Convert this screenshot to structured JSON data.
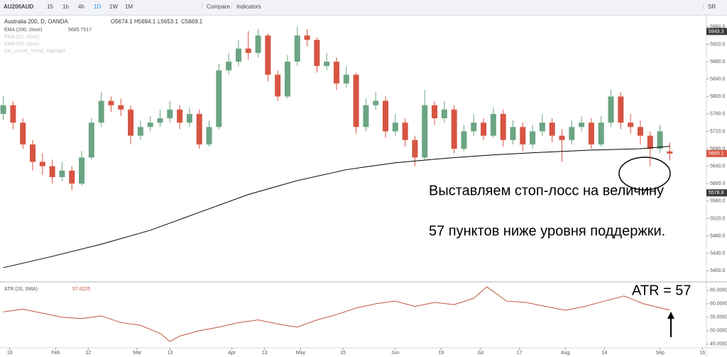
{
  "toolbar": {
    "symbol": "AU200AUD",
    "intervals": [
      "15",
      "1h",
      "4h",
      "1D",
      "1W",
      "1M"
    ],
    "active_interval": 3,
    "buttons": [
      "Compare",
      "Indicators"
    ],
    "right": "SR"
  },
  "chart_data": [
    {
      "type": "candlestick",
      "title": "Australia 200, D, OANDA",
      "ohlc_labels": [
        "O5674.1",
        "H5694.1",
        "L5653.1",
        "C5669.1"
      ],
      "hidden_indicators": [
        "EMA (20, close)",
        "EMA (50, close)",
        "CK_Linear_Trend_Highlight"
      ],
      "up_color": "#6ba583",
      "down_color": "#d75442",
      "x": [
        0,
        3,
        6,
        9,
        12,
        15,
        18,
        21,
        24,
        27,
        30,
        33,
        36,
        39,
        42,
        45,
        48,
        51,
        54,
        57,
        60,
        63,
        66,
        69,
        72,
        75,
        78,
        81,
        84,
        87,
        90,
        93,
        96,
        99,
        102,
        105,
        108,
        111,
        114,
        117,
        120,
        123,
        126,
        129,
        132,
        135,
        138,
        141,
        144,
        147,
        150,
        153,
        156,
        159,
        162,
        165,
        168,
        171,
        174,
        177,
        180,
        183,
        186,
        189,
        192,
        195,
        198,
        201,
        204
      ],
      "open": [
        5760,
        5780,
        5740,
        5690,
        5650,
        5640,
        5615,
        5630,
        5600,
        5660,
        5740,
        5790,
        5780,
        5770,
        5710,
        5730,
        5740,
        5750,
        5770,
        5740,
        5760,
        5690,
        5730,
        5860,
        5880,
        5910,
        5900,
        5940,
        5850,
        5800,
        5880,
        5940,
        5930,
        5870,
        5880,
        5830,
        5850,
        5730,
        5780,
        5790,
        5720,
        5740,
        5700,
        5660,
        5780,
        5750,
        5770,
        5680,
        5720,
        5740,
        5710,
        5760,
        5700,
        5730,
        5690,
        5720,
        5740,
        5710,
        5700,
        5730,
        5740,
        5690,
        5740,
        5800,
        5740,
        5730,
        5710,
        5680,
        5674.1
      ],
      "high": [
        5800,
        5790,
        5750,
        5700,
        5670,
        5655,
        5650,
        5640,
        5675,
        5750,
        5810,
        5800,
        5795,
        5780,
        5745,
        5755,
        5770,
        5790,
        5780,
        5775,
        5770,
        5745,
        5875,
        5900,
        5930,
        5950,
        5955,
        5945,
        5860,
        5895,
        5960,
        5955,
        5935,
        5900,
        5890,
        5870,
        5855,
        5795,
        5810,
        5800,
        5760,
        5750,
        5710,
        5815,
        5790,
        5790,
        5780,
        5735,
        5760,
        5750,
        5775,
        5770,
        5745,
        5740,
        5735,
        5760,
        5750,
        5725,
        5745,
        5755,
        5750,
        5755,
        5815,
        5810,
        5760,
        5745,
        5720,
        5735,
        5694.1
      ],
      "low": [
        5745,
        5725,
        5680,
        5630,
        5620,
        5600,
        5605,
        5585,
        5595,
        5655,
        5730,
        5765,
        5755,
        5690,
        5700,
        5720,
        5730,
        5740,
        5725,
        5730,
        5680,
        5685,
        5725,
        5850,
        5870,
        5885,
        5890,
        5835,
        5790,
        5795,
        5870,
        5915,
        5855,
        5860,
        5815,
        5820,
        5715,
        5720,
        5770,
        5705,
        5710,
        5685,
        5640,
        5655,
        5735,
        5740,
        5670,
        5675,
        5710,
        5700,
        5705,
        5685,
        5690,
        5675,
        5680,
        5710,
        5695,
        5650,
        5690,
        5720,
        5680,
        5685,
        5730,
        5725,
        5715,
        5690,
        5640,
        5670,
        5653.1
      ],
      "close": [
        5780,
        5740,
        5690,
        5650,
        5640,
        5615,
        5630,
        5600,
        5660,
        5740,
        5790,
        5780,
        5770,
        5710,
        5730,
        5740,
        5750,
        5770,
        5740,
        5760,
        5690,
        5730,
        5860,
        5880,
        5910,
        5900,
        5940,
        5850,
        5800,
        5880,
        5940,
        5930,
        5870,
        5880,
        5830,
        5850,
        5730,
        5780,
        5790,
        5720,
        5740,
        5700,
        5660,
        5780,
        5750,
        5770,
        5680,
        5720,
        5740,
        5710,
        5760,
        5700,
        5730,
        5690,
        5720,
        5740,
        5710,
        5700,
        5730,
        5740,
        5690,
        5740,
        5800,
        5740,
        5730,
        5710,
        5680,
        5720,
        5669.1
      ],
      "series": [
        {
          "name": "EMA (200, close)",
          "color": "#000000",
          "x": [
            0,
            15,
            30,
            45,
            60,
            75,
            90,
            105,
            120,
            135,
            150,
            165,
            180,
            195,
            204
          ],
          "values": [
            5407,
            5433,
            5461,
            5493,
            5534,
            5575,
            5607,
            5632,
            5648,
            5658,
            5666,
            5672,
            5677,
            5680,
            5685.7517
          ]
        }
      ],
      "price_tags": [
        {
          "value": 5949.3,
          "color": "#3b3b3b"
        },
        {
          "value": 5669.1,
          "color": "#d75442"
        },
        {
          "value": 5578.8,
          "color": "#3b3b3b"
        }
      ],
      "xlim": [
        -1,
        215
      ],
      "ylim": [
        5376,
        5976
      ],
      "yticks": [
        {
          "value": 5400,
          "label": "5400.0"
        },
        {
          "value": 5440,
          "label": "5440.0"
        },
        {
          "value": 5480,
          "label": "5480.0"
        },
        {
          "value": 5520,
          "label": "5520.0"
        },
        {
          "value": 5560,
          "label": "5560.0"
        },
        {
          "value": 5600,
          "label": "5600.0"
        },
        {
          "value": 5640,
          "label": "5640.0"
        },
        {
          "value": 5680,
          "label": "5680.0"
        },
        {
          "value": 5720,
          "label": "5720.0"
        },
        {
          "value": 5760,
          "label": "5760.0"
        },
        {
          "value": 5800,
          "label": "5800.0"
        },
        {
          "value": 5840,
          "label": "5840.0"
        },
        {
          "value": 5880,
          "label": "5880.0"
        },
        {
          "value": 5920,
          "label": "5920.0"
        },
        {
          "value": 5960,
          "label": "5960.0"
        }
      ],
      "annotations": [
        "Выставляем стоп-лосс на величину",
        "57 пунктов ниже уровня поддержки."
      ]
    },
    {
      "type": "line",
      "series": [
        {
          "name": "ATR (20, SMA)",
          "color": "#c0553f",
          "x": [
            0,
            6,
            12,
            18,
            24,
            30,
            36,
            42,
            48,
            51,
            54,
            60,
            66,
            72,
            78,
            84,
            90,
            96,
            102,
            108,
            114,
            120,
            126,
            132,
            138,
            144,
            148,
            154,
            160,
            166,
            172,
            178,
            184,
            190,
            196,
            204
          ],
          "values": [
            57,
            58,
            56.5,
            55,
            54.5,
            55.5,
            53,
            52,
            49,
            46,
            48,
            50,
            51.3,
            53,
            54,
            52.5,
            51.3,
            54,
            56,
            58.4,
            60,
            61,
            59,
            60.5,
            59.7,
            62,
            66.3,
            61,
            60.5,
            59,
            57.6,
            59,
            61,
            62.9,
            60,
            57.6225
          ]
        }
      ],
      "note": "ATR = 57",
      "xlim": [
        -1,
        215
      ],
      "ylim": [
        43.9,
        67.6
      ],
      "yticks": [
        {
          "value": 45,
          "label": "45.0000"
        },
        {
          "value": 50,
          "label": "50.0000"
        },
        {
          "value": 55,
          "label": "55.0000"
        },
        {
          "value": 60,
          "label": "60.0000"
        },
        {
          "value": 65,
          "label": "65.0000"
        }
      ],
      "xticks": [
        {
          "value": 2,
          "label": "16"
        },
        {
          "value": 16,
          "label": "Feb"
        },
        {
          "value": 26,
          "label": "12"
        },
        {
          "value": 41,
          "label": "Mar"
        },
        {
          "value": 51,
          "label": "13"
        },
        {
          "value": 70,
          "label": "Apr"
        },
        {
          "value": 80,
          "label": "13"
        },
        {
          "value": 91,
          "label": "May"
        },
        {
          "value": 104,
          "label": "15"
        },
        {
          "value": 120,
          "label": "Jun"
        },
        {
          "value": 134,
          "label": "19"
        },
        {
          "value": 146,
          "label": "Jul"
        },
        {
          "value": 158,
          "label": "17"
        },
        {
          "value": 172,
          "label": "Aug"
        },
        {
          "value": 184,
          "label": "14"
        },
        {
          "value": 201,
          "label": "Sep"
        },
        {
          "value": 214,
          "label": "16"
        }
      ]
    }
  ]
}
